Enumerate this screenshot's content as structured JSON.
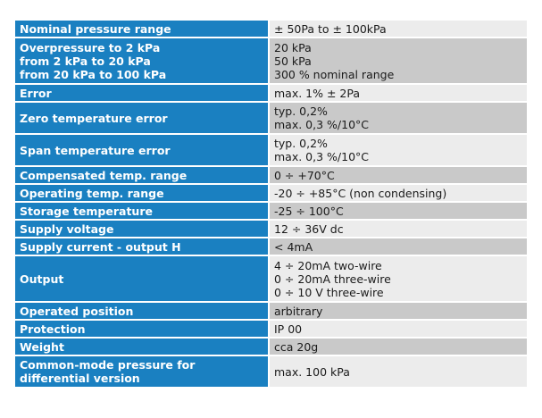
{
  "specs": [
    {
      "name": [
        "Nominal pressure range"
      ],
      "value": [
        "± 50Pa to ± 100kPa"
      ]
    },
    {
      "name": [
        "Overpressure to 2 kPa",
        "from 2 kPa to 20 kPa",
        "from 20 kPa to 100 kPa"
      ],
      "value": [
        "20 kPa",
        "50 kPa",
        "300 % nominal range"
      ]
    },
    {
      "name": [
        "Error"
      ],
      "value": [
        "max. 1% ± 2Pa"
      ]
    },
    {
      "name": [
        "Zero temperature error"
      ],
      "value": [
        "typ. 0,2%",
        "max. 0,3 %/10°C"
      ]
    },
    {
      "name": [
        "Span temperature error"
      ],
      "value": [
        "typ. 0,2%",
        "max. 0,3 %/10°C"
      ]
    },
    {
      "name": [
        "Compensated temp. range"
      ],
      "value": [
        "0 ÷ +70°C"
      ]
    },
    {
      "name": [
        "Operating temp. range"
      ],
      "value": [
        "-20 ÷ +85°C (non condensing)"
      ]
    },
    {
      "name": [
        "Storage temperature"
      ],
      "value": [
        "-25 ÷ 100°C"
      ]
    },
    {
      "name": [
        "Supply voltage"
      ],
      "value": [
        "12 ÷ 36V dc"
      ]
    },
    {
      "name": [
        "Supply current - output H"
      ],
      "value": [
        "< 4mA"
      ]
    },
    {
      "name": [
        "Output"
      ],
      "value": [
        "4 ÷ 20mA two-wire",
        "0 ÷ 20mA three-wire",
        "0 ÷ 10 V three-wire"
      ]
    },
    {
      "name": [
        "Operated position"
      ],
      "value": [
        "arbitrary"
      ]
    },
    {
      "name": [
        "Protection"
      ],
      "value": [
        "IP 00"
      ]
    },
    {
      "name": [
        "Weight"
      ],
      "value": [
        "cca 20g"
      ]
    },
    {
      "name": [
        "Common-mode pressure for",
        "differential version"
      ],
      "value": [
        "max. 100 kPa"
      ]
    }
  ],
  "colors": {
    "key_background": "#1a80c1",
    "key_text": "#ffffff",
    "value_background_light": "#ececec",
    "value_background_dark": "#c9c9c9"
  }
}
